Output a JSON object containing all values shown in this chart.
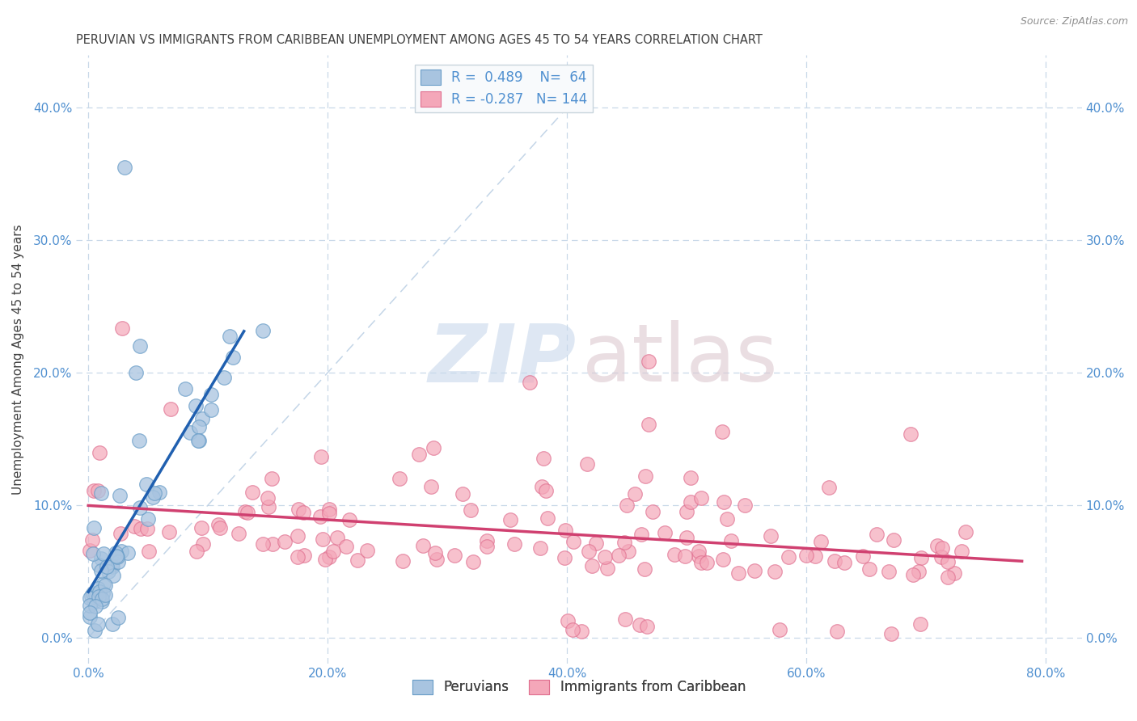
{
  "title": "PERUVIAN VS IMMIGRANTS FROM CARIBBEAN UNEMPLOYMENT AMONG AGES 45 TO 54 YEARS CORRELATION CHART",
  "source": "Source: ZipAtlas.com",
  "xlabel_ticks": [
    "0.0%",
    "20.0%",
    "40.0%",
    "60.0%",
    "80.0%"
  ],
  "xlabel_vals": [
    0.0,
    0.2,
    0.4,
    0.6,
    0.8
  ],
  "ylabel": "Unemployment Among Ages 45 to 54 years",
  "ylabel_ticks": [
    "0.0%",
    "10.0%",
    "20.0%",
    "30.0%",
    "40.0%"
  ],
  "ylabel_vals": [
    0.0,
    0.1,
    0.2,
    0.3,
    0.4
  ],
  "xlim": [
    -0.01,
    0.83
  ],
  "ylim": [
    -0.02,
    0.44
  ],
  "r_peruvian": 0.489,
  "n_peruvian": 64,
  "r_caribbean": -0.287,
  "n_caribbean": 144,
  "peruvian_color": "#a8c4e0",
  "caribbean_color": "#f4a7b9",
  "peruvian_edge": "#6a9ec8",
  "caribbean_edge": "#e07090",
  "trend_peruvian_color": "#2060b0",
  "trend_caribbean_color": "#d04070",
  "watermark_zip_color": "#c8d8ec",
  "watermark_atlas_color": "#dcc8d0",
  "background": "#ffffff",
  "grid_color": "#c8d8e8",
  "title_color": "#404040",
  "source_color": "#909090",
  "axis_tick_color": "#5090d0",
  "legend_facecolor": "#f8fafc",
  "legend_edgecolor": "#c8d4dc"
}
